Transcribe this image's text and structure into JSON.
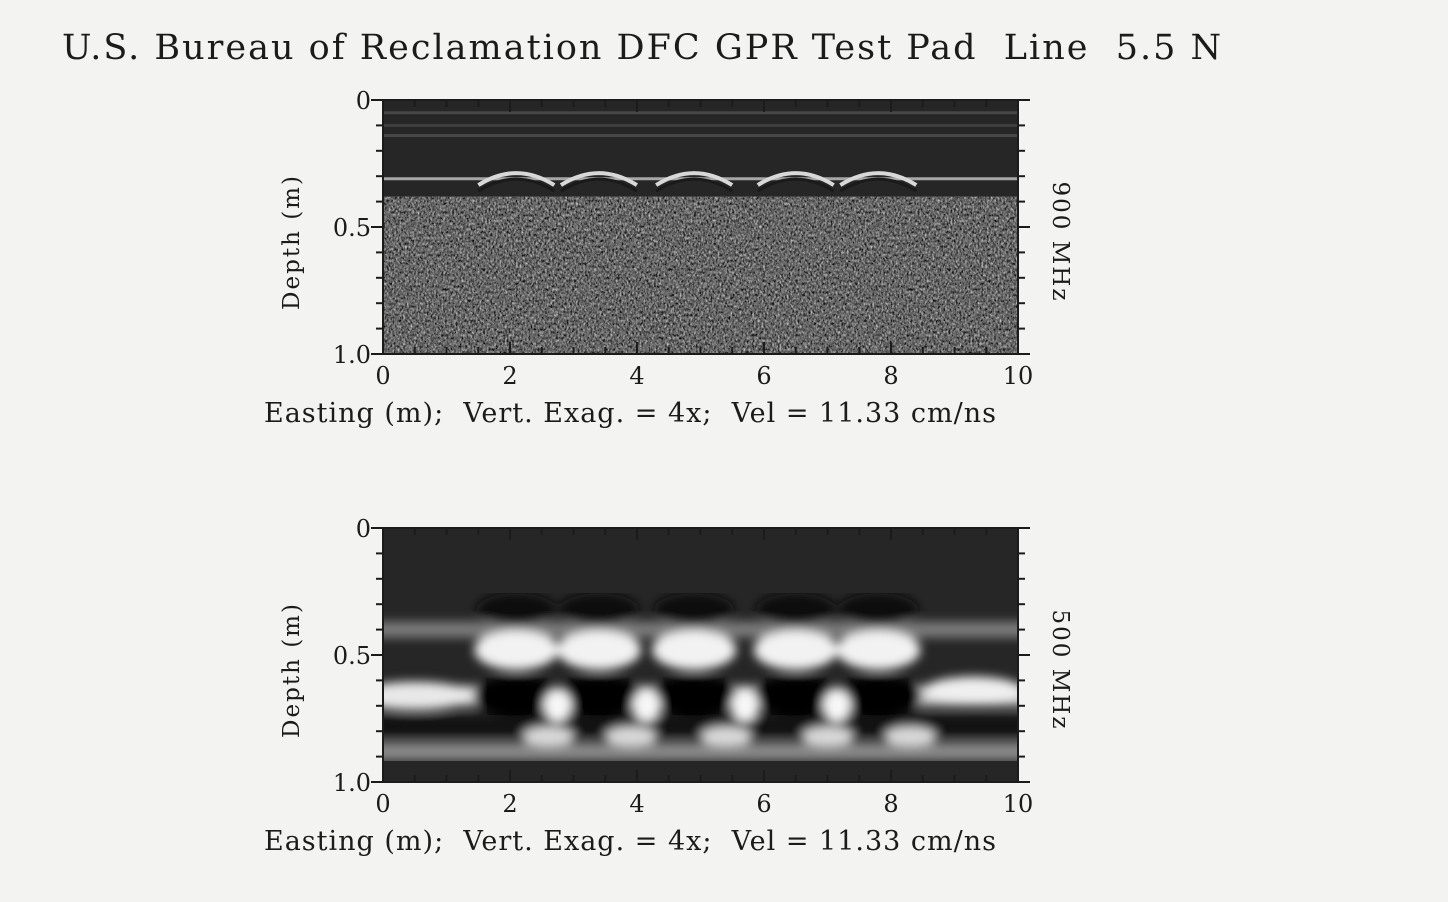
{
  "title": "U.S. Bureau of Reclamation DFC GPR Test Pad  Line  5.5 N",
  "colors": {
    "background": "#f3f3f1",
    "ink": "#1b1b1b",
    "dark": "#262626",
    "bright": "#f2f2f2"
  },
  "chart_data": [
    {
      "type": "heatmap",
      "frequency_label": "900 MHz",
      "ylabel": "Depth (m)",
      "caption": "Easting (m);  Vert. Exag. = 4x;  Vel = 11.33 cm/ns",
      "xlim": [
        0,
        10
      ],
      "ylim": [
        0,
        1.0
      ],
      "x_ticks": [
        "0",
        "2",
        "4",
        "6",
        "8",
        "10"
      ],
      "y_ticks": [
        "0",
        "0.5",
        "1.0"
      ],
      "hyperbola_apex_easting_m": [
        2.1,
        3.4,
        4.9,
        6.5,
        7.8
      ],
      "apex_depth_m": 0.28
    },
    {
      "type": "heatmap",
      "frequency_label": "500 MHz",
      "ylabel": "Depth (m)",
      "caption": "Easting (m);  Vert. Exag. = 4x;  Vel = 11.33 cm/ns",
      "xlim": [
        0,
        10
      ],
      "ylim": [
        0,
        1.0
      ],
      "x_ticks": [
        "0",
        "2",
        "4",
        "6",
        "8",
        "10"
      ],
      "y_ticks": [
        "0",
        "0.5",
        "1.0"
      ],
      "hyperbola_apex_easting_m": [
        2.1,
        3.4,
        4.9,
        6.5,
        7.8
      ],
      "apex_depth_m": 0.32
    }
  ]
}
